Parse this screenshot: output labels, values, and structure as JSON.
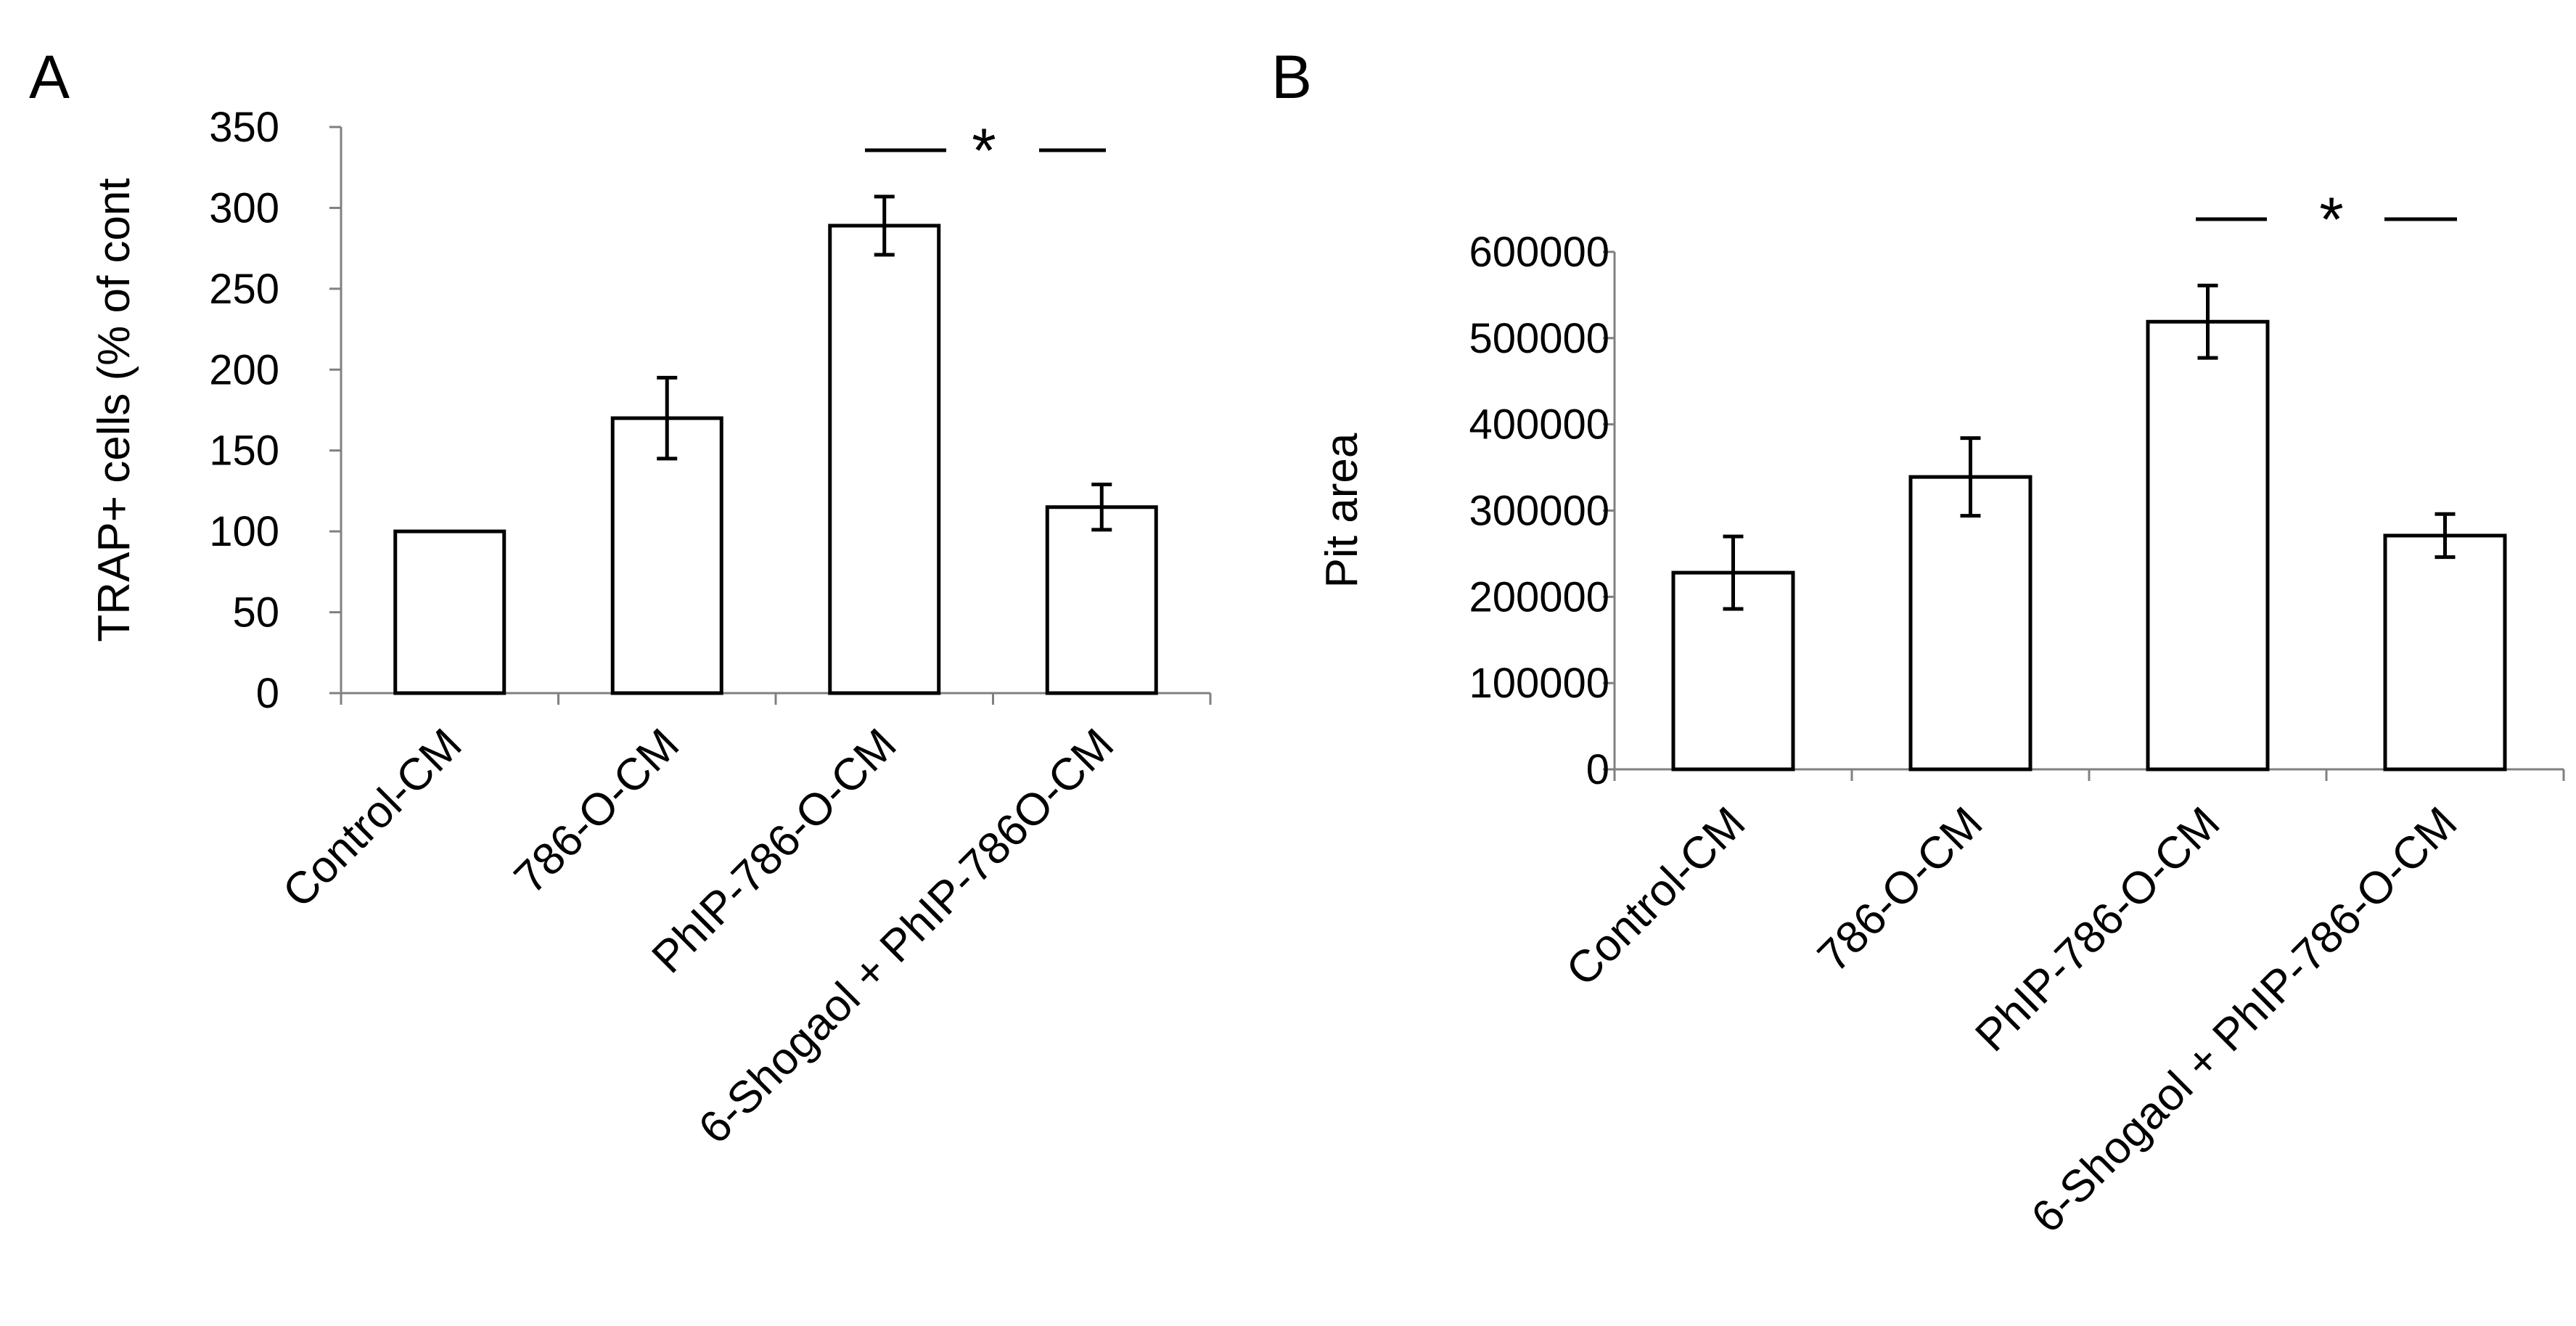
{
  "chart_data": [
    {
      "panel": "A",
      "type": "bar",
      "categories": [
        "Control-CM",
        "786-O-CM",
        "PhIP-786-O-CM",
        "6-Shogaol + PhIP-786O-CM"
      ],
      "values": [
        100,
        170,
        289,
        115
      ],
      "errors": [
        0,
        25,
        18,
        14
      ],
      "ylabel": "TRAP+ cells (% of cont",
      "xlabel": "",
      "ylim": [
        0,
        350
      ],
      "yticks": [
        0,
        50,
        100,
        150,
        200,
        250,
        300,
        350
      ],
      "ytick_labels": [
        "0",
        "50",
        "100",
        "150",
        "200",
        "250",
        "300",
        "350"
      ],
      "significance": {
        "from": 2,
        "to": 3,
        "label": "*"
      }
    },
    {
      "panel": "B",
      "type": "bar",
      "categories": [
        "Control-CM",
        "786-O-CM",
        "PhIP-786-O-CM",
        "6-Shogaol + PhIP-786-O-CM"
      ],
      "values": [
        228000,
        339000,
        519000,
        271000
      ],
      "errors": [
        42000,
        45000,
        42000,
        25000
      ],
      "ylabel": "Pit area",
      "xlabel": "",
      "ylim": [
        0,
        600000
      ],
      "yticks": [
        0,
        100000,
        200000,
        300000,
        400000,
        500000,
        600000
      ],
      "ytick_labels": [
        "0",
        "100000",
        "200000",
        "300000",
        "400000",
        "500000",
        "600000"
      ],
      "significance": {
        "from": 2,
        "to": 3,
        "label": "*"
      }
    }
  ]
}
